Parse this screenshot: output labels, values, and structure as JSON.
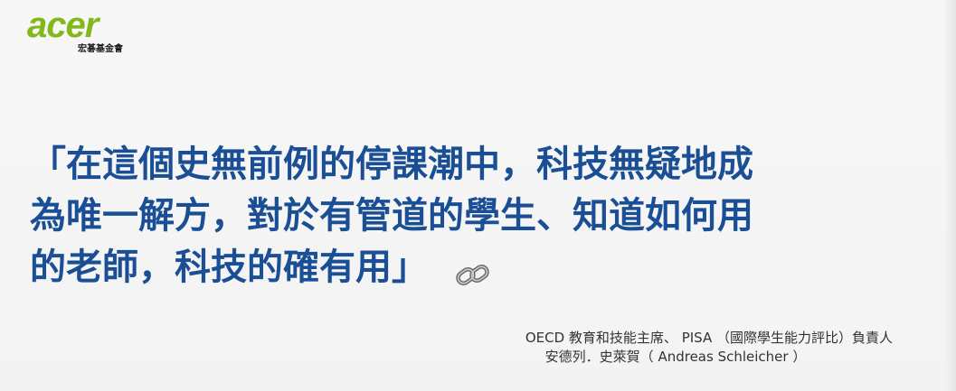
{
  "logo": {
    "brand": "acer",
    "subtitle": "宏碁基金會",
    "color": "#83b81a"
  },
  "quote": {
    "lines": [
      "「在這個史無前例的停課潮中，科技無疑地成",
      "為唯一解方，對於有管道的學生、知道如何用",
      "的老師，科技的確有用」"
    ],
    "color": "#1a4f95",
    "trailing_icon": "link-icon"
  },
  "attribution": {
    "line1": "OECD 教育和技能主席、 PISA （國際學生能力評比）負責人",
    "line2": "安德列．史萊賀（ Andreas Schleicher ）"
  }
}
